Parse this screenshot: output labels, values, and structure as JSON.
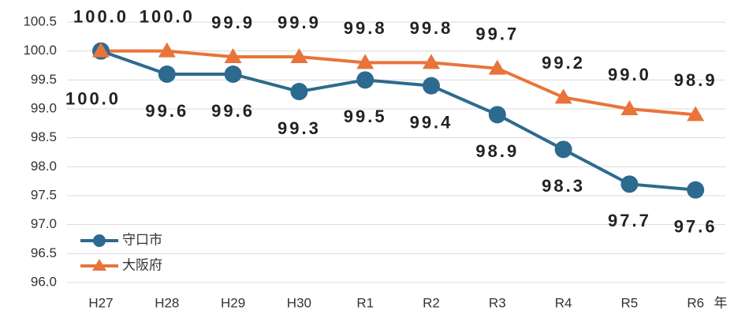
{
  "chart_data": {
    "type": "line",
    "categories": [
      "H27",
      "H28",
      "H29",
      "H30",
      "R1",
      "R2",
      "R3",
      "R4",
      "R5",
      "R6"
    ],
    "x_label": "年",
    "series": [
      {
        "name": "守口市",
        "color": "#2d6a8f",
        "values": [
          100.0,
          99.6,
          99.6,
          99.3,
          99.5,
          99.4,
          98.9,
          98.3,
          97.7,
          97.6
        ],
        "value_labels": [
          "100.0",
          "99.6",
          "99.6",
          "99.3",
          "99.5",
          "99.4",
          "98.9",
          "98.3",
          "97.7",
          "97.6"
        ]
      },
      {
        "name": "大阪府",
        "color": "#e8743b",
        "values": [
          100.0,
          100.0,
          99.9,
          99.9,
          99.8,
          99.8,
          99.7,
          99.2,
          99.0,
          98.9
        ],
        "value_labels": [
          "100.0",
          "100.0",
          "99.9",
          "99.9",
          "99.8",
          "99.8",
          "99.7",
          "99.2",
          "99.0",
          "98.9"
        ]
      }
    ],
    "ylim": [
      96.0,
      100.5
    ],
    "yticks": [
      {
        "value": 96.0,
        "label": "96.0"
      },
      96.5,
      {
        "value": 97.0,
        "label": "97.0"
      },
      97.5,
      {
        "value": 98.0,
        "label": "98.0"
      },
      98.5,
      {
        "value": 99.0,
        "label": "99.0"
      },
      99.5,
      {
        "value": 100.0,
        "label": "100.0"
      },
      100.5
    ],
    "grid": true,
    "legend": "lower left"
  }
}
